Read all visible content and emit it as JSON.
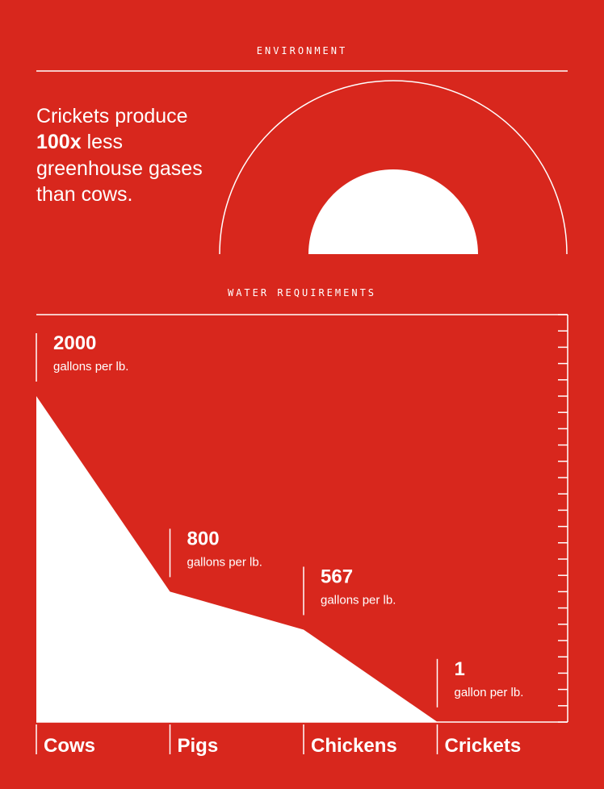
{
  "environment": {
    "label": "ENVIRONMENT",
    "headline": {
      "line1": "Crickets produce",
      "bold": "100x",
      "rest": "less",
      "line3": "greenhouse gases",
      "line4": "than cows."
    }
  },
  "chart_data": {
    "type": "area",
    "title": "WATER REQUIREMENTS",
    "categories": [
      "Cows",
      "Pigs",
      "Chickens",
      "Crickets"
    ],
    "values": [
      2000,
      800,
      567,
      1
    ],
    "units": [
      "gallons per lb.",
      "gallons per lb.",
      "gallons per lb.",
      "gallon per lb."
    ],
    "color": "#ffffff",
    "ylim": [
      0,
      2500
    ],
    "yticks": [
      0,
      100,
      200,
      300,
      400,
      500,
      600,
      700,
      800,
      900,
      1000,
      1100,
      1200,
      1300,
      1400,
      1500,
      1600,
      1700,
      1800,
      1900,
      2000,
      2100,
      2200,
      2300,
      2400,
      2500
    ]
  }
}
